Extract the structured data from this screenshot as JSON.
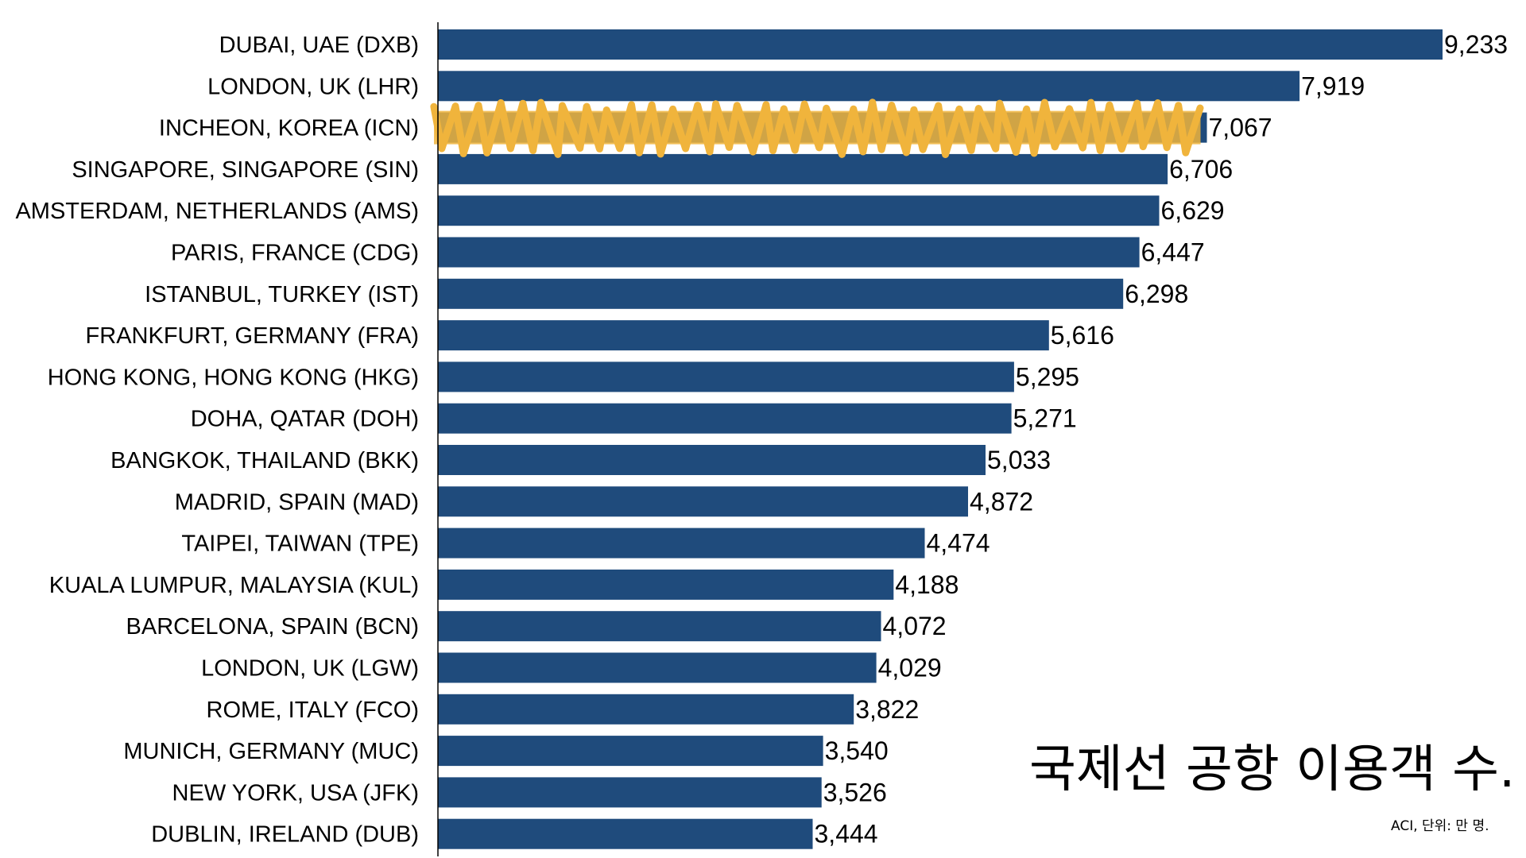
{
  "chart_data": {
    "type": "bar",
    "orientation": "horizontal",
    "title": "국제선 공항 이용객 수.",
    "source_note": "ACI, 단위: 만 명.",
    "xlabel": "",
    "ylabel": "",
    "xlim": [
      0,
      9233
    ],
    "grid": false,
    "legend": "none",
    "bar_color": "#1f4b7c",
    "highlight_color": "#f0b43c",
    "highlighted_category": "INCHEON, KOREA (ICN)",
    "categories": [
      "DUBAI, UAE (DXB)",
      "LONDON, UK (LHR)",
      "INCHEON, KOREA (ICN)",
      "SINGAPORE, SINGAPORE (SIN)",
      "AMSTERDAM, NETHERLANDS (AMS)",
      "PARIS, FRANCE (CDG)",
      "ISTANBUL, TURKEY (IST)",
      "FRANKFURT, GERMANY (FRA)",
      "HONG KONG, HONG KONG (HKG)",
      "DOHA, QATAR (DOH)",
      "BANGKOK, THAILAND (BKK)",
      "MADRID, SPAIN (MAD)",
      "TAIPEI, TAIWAN (TPE)",
      "KUALA LUMPUR, MALAYSIA (KUL)",
      "BARCELONA, SPAIN (BCN)",
      "LONDON, UK (LGW)",
      "ROME, ITALY (FCO)",
      "MUNICH, GERMANY (MUC)",
      "NEW YORK, USA (JFK)",
      "DUBLIN, IRELAND (DUB)"
    ],
    "values": [
      9233,
      7919,
      7067,
      6706,
      6629,
      6447,
      6298,
      5616,
      5295,
      5271,
      5033,
      4872,
      4474,
      4188,
      4072,
      4029,
      3822,
      3540,
      3526,
      3444
    ],
    "value_labels": [
      "9,233",
      "7,919",
      "7,067",
      "6,706",
      "6,629",
      "6,447",
      "6,298",
      "5,616",
      "5,295",
      "5,271",
      "5,033",
      "4,872",
      "4,474",
      "4,188",
      "4,072",
      "4,029",
      "3,822",
      "3,540",
      "3,526",
      "3,444"
    ]
  }
}
